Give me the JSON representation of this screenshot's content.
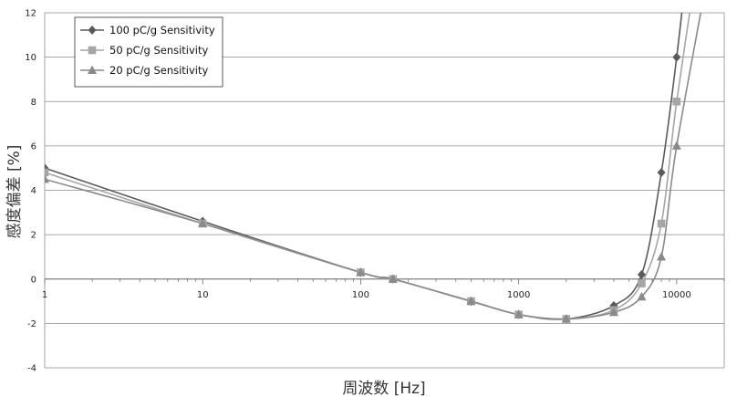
{
  "chart_data": {
    "type": "line",
    "title": "",
    "xlabel": "周波数 [Hz]",
    "ylabel": "感度偏差 [%]",
    "xscale": "log",
    "xlim": [
      1,
      20000
    ],
    "ylim": [
      -4,
      12
    ],
    "x_tick_labels": [
      "1",
      "10",
      "100",
      "1000",
      "10000"
    ],
    "y_tick_labels": [
      "-4",
      "-2",
      "0",
      "2",
      "4",
      "6",
      "8",
      "10",
      "12"
    ],
    "y_ticks": [
      -4,
      -2,
      0,
      2,
      4,
      6,
      8,
      10,
      12
    ],
    "grid": "horizontal",
    "legend": "top-left",
    "series": [
      {
        "name": "100 pC/g Sensitivity",
        "marker": "diamond",
        "color": "#5a5a5a",
        "x": [
          1,
          10,
          100,
          160,
          500,
          1000,
          2000,
          4000,
          6000,
          8000,
          10000,
          12000
        ],
        "y": [
          5.0,
          2.6,
          0.3,
          0.0,
          -1.0,
          -1.6,
          -1.8,
          -1.2,
          0.2,
          4.8,
          10.0,
          15.0
        ]
      },
      {
        "name": "50 pC/g Sensitivity",
        "marker": "square",
        "color": "#a6a6a6",
        "x": [
          1,
          10,
          100,
          160,
          500,
          1000,
          2000,
          4000,
          6000,
          8000,
          10000,
          14000
        ],
        "y": [
          4.8,
          2.5,
          0.3,
          0.0,
          -1.0,
          -1.6,
          -1.8,
          -1.4,
          -0.2,
          2.5,
          8.0,
          15.0
        ]
      },
      {
        "name": "20 pC/g Sensitivity",
        "marker": "triangle",
        "color": "#8a8a8a",
        "x": [
          1,
          10,
          100,
          160,
          500,
          1000,
          2000,
          4000,
          6000,
          8000,
          10000,
          17000
        ],
        "y": [
          4.5,
          2.5,
          0.3,
          0.0,
          -1.0,
          -1.6,
          -1.8,
          -1.5,
          -0.8,
          1.0,
          6.0,
          15.0
        ]
      }
    ]
  }
}
